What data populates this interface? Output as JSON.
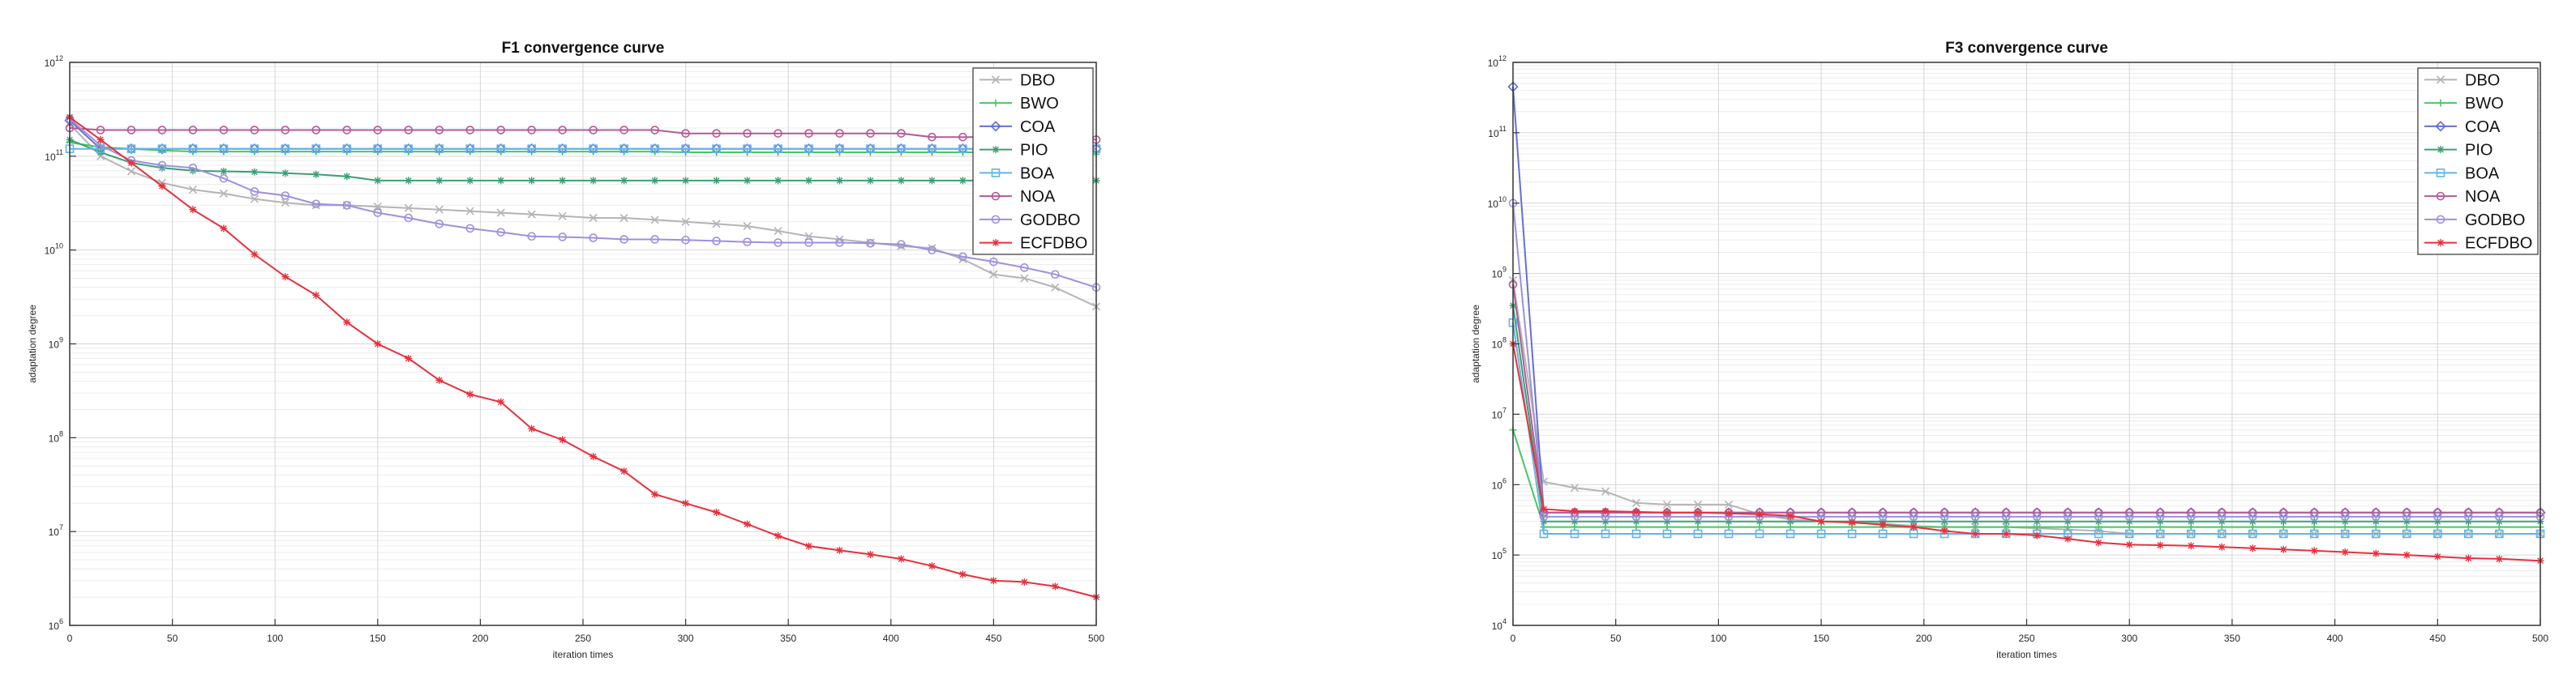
{
  "chart_data": [
    {
      "type": "line",
      "title": "F1 convergence curve",
      "xlabel": "iteration times",
      "ylabel": "adaptation degree",
      "xlim": [
        0,
        500
      ],
      "ylim_exponent": [
        6,
        12
      ],
      "y_scale": "log",
      "x_ticks": [
        "0",
        "50",
        "100",
        "150",
        "200",
        "250",
        "300",
        "350",
        "400",
        "450",
        "500"
      ],
      "y_tick_exponents": [
        6,
        7,
        8,
        9,
        10,
        11,
        12
      ],
      "grid": true,
      "legend_position": "top-right",
      "x": [
        0,
        15,
        30,
        45,
        60,
        75,
        90,
        105,
        120,
        135,
        150,
        165,
        180,
        195,
        210,
        225,
        240,
        255,
        270,
        285,
        300,
        315,
        330,
        345,
        360,
        375,
        390,
        405,
        420,
        435,
        450,
        465,
        480,
        500
      ],
      "series": [
        {
          "name": "DBO",
          "color": "#b4b4b4",
          "marker": "x",
          "values": [
            220000000000.0,
            100000000000.0,
            69000000000.0,
            52000000000.0,
            44000000000.0,
            40000000000.0,
            35000000000.0,
            32000000000.0,
            30000000000.0,
            30000000000.0,
            29000000000.0,
            28000000000.0,
            27000000000.0,
            26000000000.0,
            25000000000.0,
            24000000000.0,
            23000000000.0,
            22000000000.0,
            22000000000.0,
            21000000000.0,
            20000000000.0,
            19000000000.0,
            18000000000.0,
            16000000000.0,
            14000000000.0,
            13000000000.0,
            12000000000.0,
            11000000000.0,
            10500000000.0,
            8000000000.0,
            5500000000.0,
            5000000000.0,
            4000000000.0,
            2500000000.0
          ]
        },
        {
          "name": "BWO",
          "color": "#46c862",
          "marker": "+",
          "values": [
            140000000000.0,
            125000000000.0,
            120000000000.0,
            115000000000.0,
            112000000000.0,
            112000000000.0,
            112000000000.0,
            112000000000.0,
            112000000000.0,
            112000000000.0,
            112000000000.0,
            112000000000.0,
            112000000000.0,
            112000000000.0,
            112000000000.0,
            112000000000.0,
            112000000000.0,
            112000000000.0,
            112000000000.0,
            112000000000.0,
            110000000000.0,
            110000000000.0,
            110000000000.0,
            110000000000.0,
            110000000000.0,
            110000000000.0,
            110000000000.0,
            110000000000.0,
            110000000000.0,
            110000000000.0,
            110000000000.0,
            110000000000.0,
            110000000000.0,
            105000000000.0
          ]
        },
        {
          "name": "COA",
          "color": "#6470d2",
          "marker": "diamond",
          "values": [
            240000000000.0,
            120000000000.0,
            120000000000.0,
            120000000000.0,
            120000000000.0,
            120000000000.0,
            120000000000.0,
            120000000000.0,
            120000000000.0,
            120000000000.0,
            120000000000.0,
            120000000000.0,
            120000000000.0,
            120000000000.0,
            120000000000.0,
            120000000000.0,
            120000000000.0,
            120000000000.0,
            120000000000.0,
            120000000000.0,
            120000000000.0,
            120000000000.0,
            120000000000.0,
            120000000000.0,
            120000000000.0,
            120000000000.0,
            120000000000.0,
            120000000000.0,
            120000000000.0,
            120000000000.0,
            120000000000.0,
            120000000000.0,
            120000000000.0,
            120000000000.0
          ]
        },
        {
          "name": "PIO",
          "color": "#3aa072",
          "marker": "asterisk",
          "values": [
            150000000000.0,
            110000000000.0,
            85000000000.0,
            75000000000.0,
            70000000000.0,
            69000000000.0,
            68000000000.0,
            66000000000.0,
            64000000000.0,
            61000000000.0,
            55000000000.0,
            55000000000.0,
            55000000000.0,
            55000000000.0,
            55000000000.0,
            55000000000.0,
            55000000000.0,
            55000000000.0,
            55000000000.0,
            55000000000.0,
            55000000000.0,
            55000000000.0,
            55000000000.0,
            55000000000.0,
            55000000000.0,
            55000000000.0,
            55000000000.0,
            55000000000.0,
            55000000000.0,
            55000000000.0,
            55000000000.0,
            55000000000.0,
            55000000000.0,
            55000000000.0
          ]
        },
        {
          "name": "BOA",
          "color": "#64b4e6",
          "marker": "square",
          "values": [
            120000000000.0,
            120000000000.0,
            120000000000.0,
            120000000000.0,
            120000000000.0,
            120000000000.0,
            120000000000.0,
            120000000000.0,
            120000000000.0,
            120000000000.0,
            120000000000.0,
            120000000000.0,
            120000000000.0,
            120000000000.0,
            120000000000.0,
            120000000000.0,
            120000000000.0,
            120000000000.0,
            120000000000.0,
            120000000000.0,
            120000000000.0,
            120000000000.0,
            120000000000.0,
            120000000000.0,
            120000000000.0,
            120000000000.0,
            120000000000.0,
            120000000000.0,
            120000000000.0,
            120000000000.0,
            120000000000.0,
            120000000000.0,
            120000000000.0,
            120000000000.0
          ]
        },
        {
          "name": "NOA",
          "color": "#b45a96",
          "marker": "circle",
          "values": [
            200000000000.0,
            190000000000.0,
            190000000000.0,
            190000000000.0,
            190000000000.0,
            190000000000.0,
            190000000000.0,
            190000000000.0,
            190000000000.0,
            190000000000.0,
            190000000000.0,
            190000000000.0,
            190000000000.0,
            190000000000.0,
            190000000000.0,
            190000000000.0,
            190000000000.0,
            190000000000.0,
            190000000000.0,
            190000000000.0,
            175000000000.0,
            175000000000.0,
            175000000000.0,
            175000000000.0,
            175000000000.0,
            175000000000.0,
            175000000000.0,
            175000000000.0,
            160000000000.0,
            160000000000.0,
            160000000000.0,
            160000000000.0,
            160000000000.0,
            150000000000.0
          ]
        },
        {
          "name": "GODBO",
          "color": "#9a92dc",
          "marker": "circle",
          "values": [
            250000000000.0,
            130000000000.0,
            90000000000.0,
            80000000000.0,
            75000000000.0,
            58000000000.0,
            42000000000.0,
            38000000000.0,
            31000000000.0,
            30000000000.0,
            25000000000.0,
            22000000000.0,
            19000000000.0,
            17000000000.0,
            15500000000.0,
            14000000000.0,
            13800000000.0,
            13500000000.0,
            13000000000.0,
            13000000000.0,
            12800000000.0,
            12500000000.0,
            12200000000.0,
            12000000000.0,
            12000000000.0,
            12000000000.0,
            11800000000.0,
            11500000000.0,
            10000000000.0,
            8500000000.0,
            7500000000.0,
            6500000000.0,
            5500000000.0,
            4000000000.0
          ]
        },
        {
          "name": "ECFDBO",
          "color": "#e8303c",
          "marker": "asterisk",
          "values": [
            260000000000.0,
            150000000000.0,
            85000000000.0,
            48000000000.0,
            27000000000.0,
            17000000000.0,
            9000000000.0,
            5200000000.0,
            3300000000.0,
            1700000000.0,
            1000000000.0,
            700000000.0,
            410000000.0,
            290000000.0,
            240000000.0,
            125000000.0,
            95000000.0,
            63000000.0,
            44000000.0,
            25000000.0,
            20000000.0,
            16000000.0,
            12000000.0,
            9000000.0,
            7000000.0,
            6300000.0,
            5700000.0,
            5100000.0,
            4300000.0,
            3500000.0,
            3000000.0,
            2900000.0,
            2600000.0,
            2000000.0
          ]
        }
      ]
    },
    {
      "type": "line",
      "title": "F3 convergence curve",
      "xlabel": "iteration times",
      "ylabel": "adaptation degree",
      "xlim": [
        0,
        500
      ],
      "ylim_exponent": [
        4,
        12
      ],
      "y_scale": "log",
      "x_ticks": [
        "0",
        "50",
        "100",
        "150",
        "200",
        "250",
        "300",
        "350",
        "400",
        "450",
        "500"
      ],
      "y_tick_exponents": [
        4,
        5,
        6,
        7,
        8,
        9,
        10,
        11,
        12
      ],
      "grid": true,
      "legend_position": "top-right",
      "x": [
        0,
        15,
        30,
        45,
        60,
        75,
        90,
        105,
        120,
        135,
        150,
        165,
        180,
        195,
        210,
        225,
        240,
        255,
        270,
        285,
        300,
        315,
        330,
        345,
        360,
        375,
        390,
        405,
        420,
        435,
        450,
        465,
        480,
        500
      ],
      "series": [
        {
          "name": "DBO",
          "color": "#b4b4b4",
          "marker": "x",
          "values": [
            800000000.0,
            1100000.0,
            900000.0,
            800000.0,
            550000.0,
            520000.0,
            520000.0,
            520000.0,
            380000.0,
            320000.0,
            300000.0,
            300000.0,
            280000.0,
            260000.0,
            250000.0,
            250000.0,
            250000.0,
            240000.0,
            230000.0,
            220000.0,
            200000.0,
            200000.0,
            200000.0,
            200000.0,
            200000.0,
            200000.0,
            200000.0,
            200000.0,
            200000.0,
            200000.0,
            200000.0,
            200000.0,
            200000.0,
            200000.0
          ]
        },
        {
          "name": "BWO",
          "color": "#46c862",
          "marker": "+",
          "values": [
            6000000.0,
            250000.0,
            250000.0,
            250000.0,
            250000.0,
            250000.0,
            250000.0,
            250000.0,
            250000.0,
            250000.0,
            250000.0,
            250000.0,
            250000.0,
            250000.0,
            250000.0,
            250000.0,
            250000.0,
            250000.0,
            250000.0,
            250000.0,
            250000.0,
            250000.0,
            250000.0,
            250000.0,
            250000.0,
            250000.0,
            250000.0,
            250000.0,
            250000.0,
            250000.0,
            250000.0,
            250000.0,
            250000.0,
            250000.0
          ]
        },
        {
          "name": "COA",
          "color": "#6470d2",
          "marker": "diamond",
          "values": [
            450000000000.0,
            400000.0,
            400000.0,
            400000.0,
            400000.0,
            400000.0,
            400000.0,
            400000.0,
            400000.0,
            400000.0,
            400000.0,
            400000.0,
            400000.0,
            400000.0,
            400000.0,
            400000.0,
            400000.0,
            400000.0,
            400000.0,
            400000.0,
            400000.0,
            400000.0,
            400000.0,
            400000.0,
            400000.0,
            400000.0,
            400000.0,
            400000.0,
            400000.0,
            400000.0,
            400000.0,
            400000.0,
            400000.0,
            400000.0
          ]
        },
        {
          "name": "PIO",
          "color": "#3aa072",
          "marker": "asterisk",
          "values": [
            350000000.0,
            300000.0,
            300000.0,
            300000.0,
            300000.0,
            300000.0,
            300000.0,
            300000.0,
            300000.0,
            300000.0,
            300000.0,
            300000.0,
            300000.0,
            300000.0,
            300000.0,
            300000.0,
            300000.0,
            300000.0,
            300000.0,
            300000.0,
            300000.0,
            300000.0,
            300000.0,
            300000.0,
            300000.0,
            300000.0,
            300000.0,
            300000.0,
            300000.0,
            300000.0,
            300000.0,
            300000.0,
            300000.0,
            300000.0
          ]
        },
        {
          "name": "BOA",
          "color": "#64b4e6",
          "marker": "square",
          "values": [
            200000000.0,
            200000.0,
            200000.0,
            200000.0,
            200000.0,
            200000.0,
            200000.0,
            200000.0,
            200000.0,
            200000.0,
            200000.0,
            200000.0,
            200000.0,
            200000.0,
            200000.0,
            200000.0,
            200000.0,
            200000.0,
            200000.0,
            200000.0,
            200000.0,
            200000.0,
            200000.0,
            200000.0,
            200000.0,
            200000.0,
            200000.0,
            200000.0,
            200000.0,
            200000.0,
            200000.0,
            200000.0,
            200000.0,
            200000.0
          ]
        },
        {
          "name": "NOA",
          "color": "#b45a96",
          "marker": "circle",
          "values": [
            700000000.0,
            400000.0,
            400000.0,
            400000.0,
            400000.0,
            400000.0,
            400000.0,
            400000.0,
            400000.0,
            400000.0,
            400000.0,
            400000.0,
            400000.0,
            400000.0,
            400000.0,
            400000.0,
            400000.0,
            400000.0,
            400000.0,
            400000.0,
            400000.0,
            400000.0,
            400000.0,
            400000.0,
            400000.0,
            400000.0,
            400000.0,
            400000.0,
            400000.0,
            400000.0,
            400000.0,
            400000.0,
            400000.0,
            400000.0
          ]
        },
        {
          "name": "GODBO",
          "color": "#9a92dc",
          "marker": "circle",
          "values": [
            10000000000.0,
            350000.0,
            350000.0,
            350000.0,
            350000.0,
            350000.0,
            350000.0,
            350000.0,
            350000.0,
            350000.0,
            350000.0,
            350000.0,
            350000.0,
            350000.0,
            350000.0,
            350000.0,
            350000.0,
            350000.0,
            350000.0,
            350000.0,
            350000.0,
            350000.0,
            350000.0,
            350000.0,
            350000.0,
            350000.0,
            350000.0,
            350000.0,
            350000.0,
            350000.0,
            350000.0,
            350000.0,
            350000.0,
            350000.0
          ]
        },
        {
          "name": "ECFDBO",
          "color": "#e8303c",
          "marker": "asterisk",
          "values": [
            100000000.0,
            450000.0,
            420000.0,
            420000.0,
            410000.0,
            400000.0,
            400000.0,
            390000.0,
            380000.0,
            360000.0,
            300000.0,
            290000.0,
            270000.0,
            250000.0,
            220000.0,
            200000.0,
            200000.0,
            190000.0,
            170000.0,
            150000.0,
            140000.0,
            138000.0,
            135000.0,
            130000.0,
            125000.0,
            120000.0,
            115000.0,
            110000.0,
            105000.0,
            100000.0,
            95000.0,
            90000.0,
            88000.0,
            83000.0
          ]
        }
      ]
    }
  ]
}
